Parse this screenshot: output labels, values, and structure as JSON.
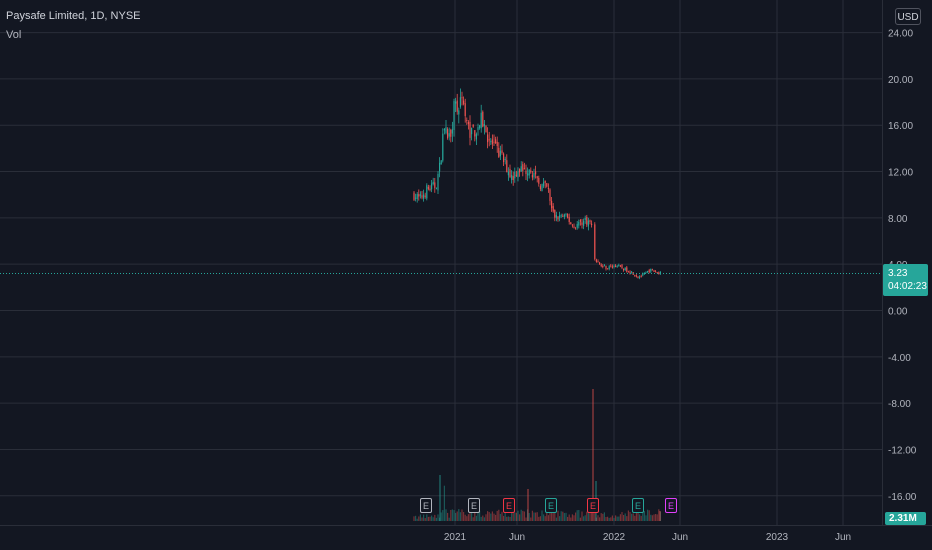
{
  "legend": {
    "symbol": "Paysafe Limited, 1D, NYSE",
    "volume_label": "Vol"
  },
  "currency": "USD",
  "price_axis": {
    "ticks": [
      "24.00",
      "20.00",
      "16.00",
      "12.00",
      "8.00",
      "4.00",
      "0.00",
      "-4.00",
      "-8.00",
      "-12.00",
      "-16.00"
    ]
  },
  "time_axis": {
    "ticks": [
      "2021",
      "Jun",
      "2022",
      "Jun",
      "2023",
      "Jun"
    ]
  },
  "last_price": {
    "value": "3.23",
    "countdown": "04:02:23"
  },
  "volume_badge": "2.31M",
  "earnings": [
    "E",
    "E",
    "E",
    "E",
    "E",
    "E",
    "E"
  ],
  "colors": {
    "up": "#26a69a",
    "down": "#ef5350",
    "background": "#131722",
    "grid": "#2a2e39",
    "earnings_gray": "#b2b5be",
    "earnings_red": "#f23645",
    "earnings_green": "#26a69a",
    "earnings_purple": "#e040fb"
  }
}
